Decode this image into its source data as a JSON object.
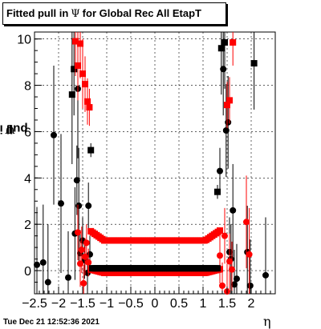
{
  "title": {
    "prefix": "Fitted pull in",
    "symbol": "Ψ",
    "suffix": "for Global Rec All EtapT"
  },
  "timestamp": "Tue Dec 21 12:52:36 2021",
  "chart_data": {
    "type": "scatter",
    "xlabel": "η",
    "ylabel_text": "pull in",
    "ylabel_symbol": "Ψ",
    "xlim": [
      -2.5,
      2.5
    ],
    "ylim": [
      -1.0,
      10.3
    ],
    "x_ticks": [
      -2.5,
      -2,
      -1.5,
      -1,
      -0.5,
      0,
      0.5,
      1,
      1.5,
      2
    ],
    "x_tick_labels": [
      "−2.5",
      "−2",
      "−1.5",
      "−1",
      "−0.5",
      "0",
      "0.5",
      "1",
      "1.5",
      "2"
    ],
    "y_ticks": [
      0,
      2,
      4,
      6,
      8,
      10
    ],
    "y_tick_labels": [
      "0",
      "2",
      "4",
      "6",
      "8",
      "10"
    ],
    "grid": true,
    "series": [
      {
        "color": "#000000",
        "markers": "black circles and squares",
        "points": [
          {
            "x": -2.45,
            "y": 0.25,
            "err": 2.5
          },
          {
            "x": -2.32,
            "y": 0.35,
            "err": 2.5
          },
          {
            "x": -2.22,
            "y": -0.5,
            "err": 2.5
          },
          {
            "x": -2.1,
            "y": 5.85,
            "err": 3.0
          },
          {
            "x": -1.95,
            "y": 2.9,
            "err": 3.0
          },
          {
            "x": -1.8,
            "y": -0.3,
            "err": 2.0
          },
          {
            "x": -1.72,
            "y": 7.6,
            "err": 3.0,
            "square": true
          },
          {
            "x": -1.68,
            "y": 8.7,
            "err": 2.0,
            "square": true
          },
          {
            "x": -1.66,
            "y": 1.6,
            "err": 2.0
          },
          {
            "x": -1.62,
            "y": 3.9,
            "err": 1.5
          },
          {
            "x": -1.6,
            "y": 7.85,
            "err": 3.0
          },
          {
            "x": -1.58,
            "y": 2.8,
            "err": 2.5
          },
          {
            "x": -1.55,
            "y": 0.75,
            "err": 1.0
          },
          {
            "x": -1.5,
            "y": 1.3,
            "err": 1.0
          },
          {
            "x": -1.46,
            "y": 0.45,
            "err": 0.8
          },
          {
            "x": -1.4,
            "y": -0.1,
            "err": 0.8
          },
          {
            "x": -1.38,
            "y": 2.8,
            "err": 1.0
          },
          {
            "x": -1.35,
            "y": 0.7,
            "err": 0.8
          },
          {
            "x": -1.33,
            "y": 5.2,
            "err": 0.3,
            "square": true
          },
          {
            "x": 1.3,
            "y": 3.4,
            "err": 0.3,
            "square": true
          },
          {
            "x": 1.35,
            "y": 4.3,
            "err": 1.0
          },
          {
            "x": 1.38,
            "y": 9.6,
            "err": 2.0,
            "square": true
          },
          {
            "x": 1.42,
            "y": 8.7,
            "err": 2.0
          },
          {
            "x": 1.45,
            "y": 9.85,
            "err": 2.0,
            "square": true
          },
          {
            "x": 1.48,
            "y": 6.05,
            "err": 2.0
          },
          {
            "x": 1.52,
            "y": 6.4,
            "err": 2.0
          },
          {
            "x": 1.55,
            "y": 0.8,
            "err": 1.5
          },
          {
            "x": 1.58,
            "y": 0.5,
            "err": 1.5
          },
          {
            "x": 1.62,
            "y": 2.6,
            "err": 2.0
          },
          {
            "x": 1.65,
            "y": -0.6,
            "err": 1.5
          },
          {
            "x": 1.7,
            "y": -0.35,
            "err": 1.5
          },
          {
            "x": 1.92,
            "y": 0.8,
            "err": 2.0
          },
          {
            "x": 1.98,
            "y": -0.65,
            "err": 2.0
          },
          {
            "x": 2.06,
            "y": 8.95,
            "err": 2.0,
            "square": true
          },
          {
            "x": 2.3,
            "y": -0.2,
            "err": 2.5
          }
        ]
      },
      {
        "color": "#ff0000",
        "markers": "red squares and circles",
        "points": [
          {
            "x": -1.65,
            "y": 9.9,
            "err": 1.5,
            "square": true
          },
          {
            "x": -1.6,
            "y": 8.85,
            "err": 1.5,
            "square": true
          },
          {
            "x": -1.55,
            "y": 9.8,
            "err": 1.5,
            "square": true
          },
          {
            "x": -1.5,
            "y": 8.5,
            "err": 1.5,
            "square": true
          },
          {
            "x": -1.45,
            "y": 8.05,
            "err": 1.2,
            "square": true
          },
          {
            "x": -1.4,
            "y": 7.3,
            "err": 1.0,
            "square": true
          },
          {
            "x": -1.36,
            "y": 7.05,
            "err": 0.8,
            "square": true
          },
          {
            "x": -1.6,
            "y": 1.65,
            "err": 1.2
          },
          {
            "x": -1.55,
            "y": 0.3,
            "err": 1.0
          },
          {
            "x": -1.52,
            "y": 0.9,
            "err": 1.0
          },
          {
            "x": -1.48,
            "y": -0.55,
            "err": 0.8
          },
          {
            "x": -1.45,
            "y": 0.6,
            "err": 0.8
          },
          {
            "x": -1.42,
            "y": 1.2,
            "err": 0.8
          },
          {
            "x": -1.38,
            "y": 0.35,
            "err": 0.6
          },
          {
            "x": 1.35,
            "y": 0.65,
            "err": 1.2
          },
          {
            "x": 1.4,
            "y": -0.65,
            "err": 1.0
          },
          {
            "x": 1.45,
            "y": 1.5,
            "err": 1.2
          },
          {
            "x": 1.5,
            "y": -0.9,
            "err": 1.2
          },
          {
            "x": 1.55,
            "y": 0.4,
            "err": 1.2
          },
          {
            "x": 1.6,
            "y": 0.05,
            "err": 1.2
          },
          {
            "x": 1.5,
            "y": 7.15,
            "err": 1.0,
            "square": true
          },
          {
            "x": 1.55,
            "y": 7.35,
            "err": 1.0,
            "square": true
          },
          {
            "x": 1.62,
            "y": 9.85,
            "err": 1.0,
            "square": true
          },
          {
            "x": 1.9,
            "y": 2.1,
            "err": 2.0
          },
          {
            "x": 1.96,
            "y": 0.7,
            "err": 2.0
          }
        ],
        "bands": [
          {
            "x_from": -1.33,
            "x_to": 1.33,
            "level": 1.3,
            "step": 0.04,
            "edge_rise": 0.4
          },
          {
            "x_from": -1.33,
            "x_to": 1.33,
            "level": -0.1,
            "step": 0.04,
            "edge_rise": 0.15
          }
        ]
      },
      {
        "color": "#000000",
        "markers": "black central band",
        "points": [],
        "bands": [
          {
            "x_from": -1.3,
            "x_to": 1.3,
            "level": 0.1,
            "step": 0.04,
            "edge_rise": 0.0
          }
        ]
      }
    ]
  }
}
